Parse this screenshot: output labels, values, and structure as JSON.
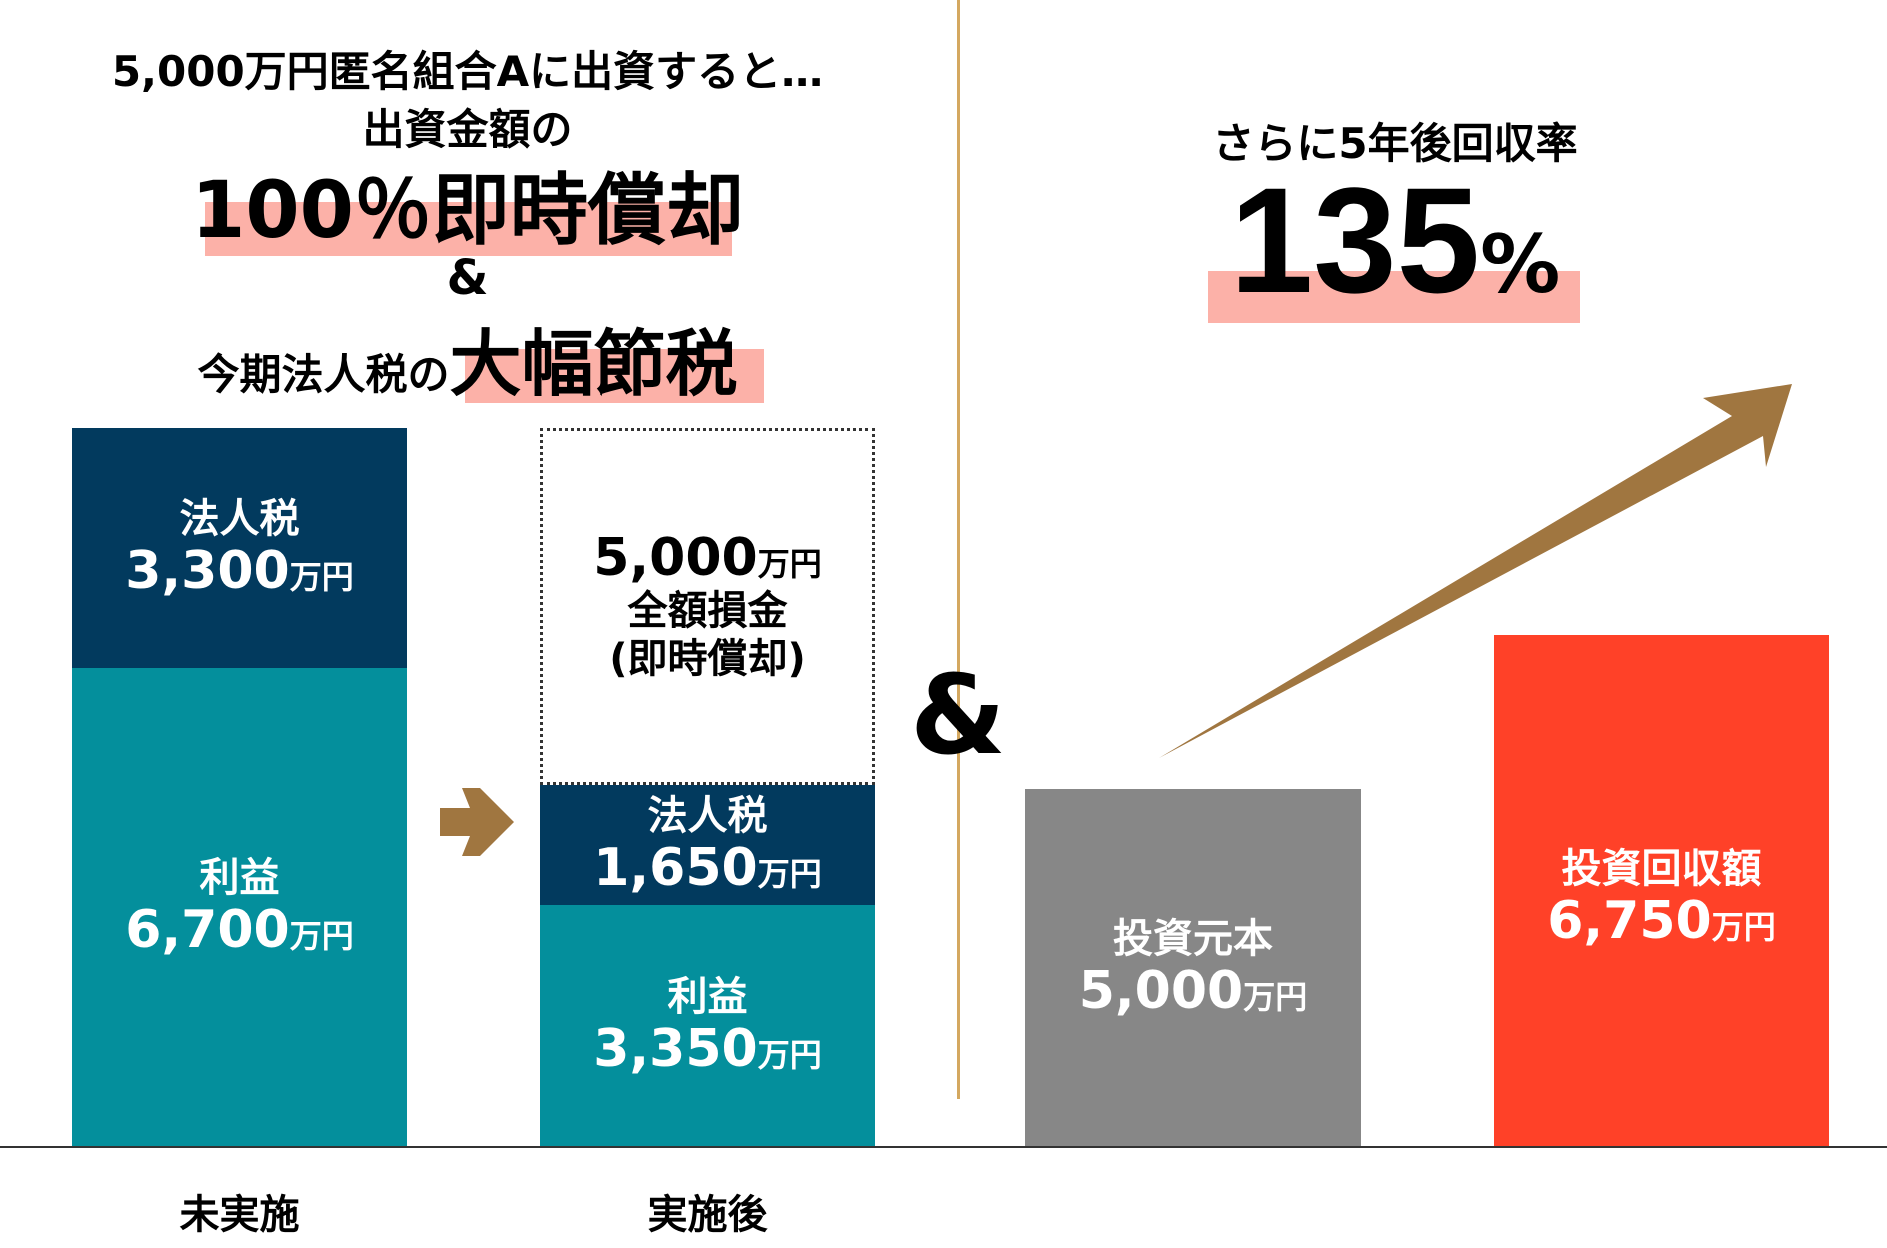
{
  "left_heading": {
    "line1": "5,000万円匿名組合Aに出資すると…",
    "line2": "出資金額の",
    "line3": "100％即時償却",
    "amp": "&",
    "line4_prefix": "今期法人税の",
    "line4_highlight": "大幅節税"
  },
  "right_heading": {
    "line1": "さらに5年後回収率",
    "rate": "135",
    "percent": "%"
  },
  "middle_amp": "&",
  "before": {
    "label": "未実施",
    "tax": {
      "label": "法人税",
      "value": "3,300",
      "unit": "万円"
    },
    "profit": {
      "label": "利益",
      "value": "6,700",
      "unit": "万円"
    }
  },
  "after": {
    "label": "実施後",
    "writeoff": {
      "value": "5,000",
      "unit": "万円",
      "label": "全額損金",
      "note": "(即時償却)"
    },
    "tax": {
      "label": "法人税",
      "value": "1,650",
      "unit": "万円"
    },
    "profit": {
      "label": "利益",
      "value": "3,350",
      "unit": "万円"
    }
  },
  "principal": {
    "label": "投資元本",
    "value": "5,000",
    "unit": "万円"
  },
  "recovery": {
    "label": "投資回収額",
    "value": "6,750",
    "unit": "万円"
  },
  "colors": {
    "tax": "#023a5e",
    "profit": "#048f9c",
    "principal": "#878787",
    "recovery": "#ff4128",
    "arrow": "#a07640",
    "highlight": "#fcb1a8",
    "divider": "#d4a860"
  }
}
